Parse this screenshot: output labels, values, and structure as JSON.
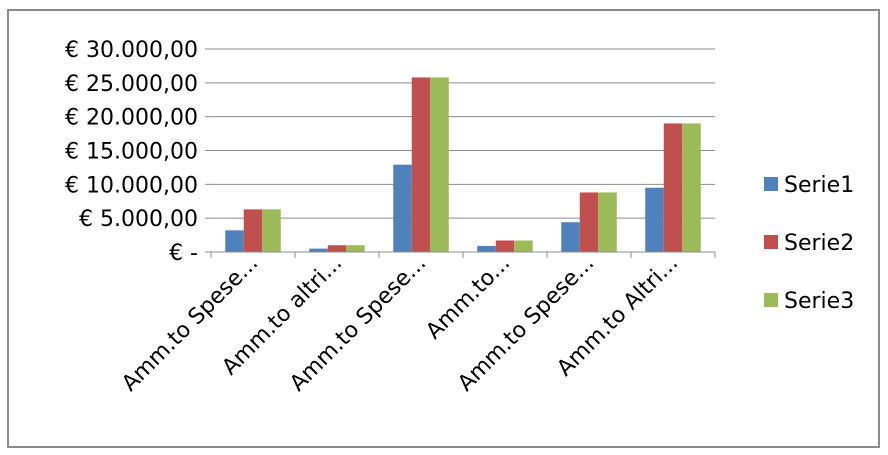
{
  "chart_data": {
    "type": "bar",
    "title": "",
    "xlabel": "",
    "ylabel": "",
    "ylim": [
      0,
      30000
    ],
    "yticks": [
      0,
      5000,
      10000,
      15000,
      20000,
      25000,
      30000
    ],
    "ytick_labels": [
      "€ -",
      "€ 5.000,00",
      "€ 10.000,00",
      "€ 15.000,00",
      "€ 20.000,00",
      "€ 25.000,00",
      "€ 30.000,00"
    ],
    "categories": [
      "Amm.to Spese...",
      "Amm.to altri...",
      "Amm.to Spese...",
      "Amm.to...",
      "Amm.to Spese...",
      "Amm.to Altri..."
    ],
    "series": [
      {
        "name": "Serie1",
        "color": "#4f81bd",
        "values": [
          3200,
          500,
          12900,
          900,
          4400,
          9500
        ]
      },
      {
        "name": "Serie2",
        "color": "#c0504d",
        "values": [
          6300,
          1000,
          25800,
          1700,
          8800,
          19000
        ]
      },
      {
        "name": "Serie3",
        "color": "#9bbb59",
        "values": [
          6300,
          1000,
          25800,
          1700,
          8800,
          19000
        ]
      }
    ],
    "grid": true,
    "legend_position": "right"
  }
}
